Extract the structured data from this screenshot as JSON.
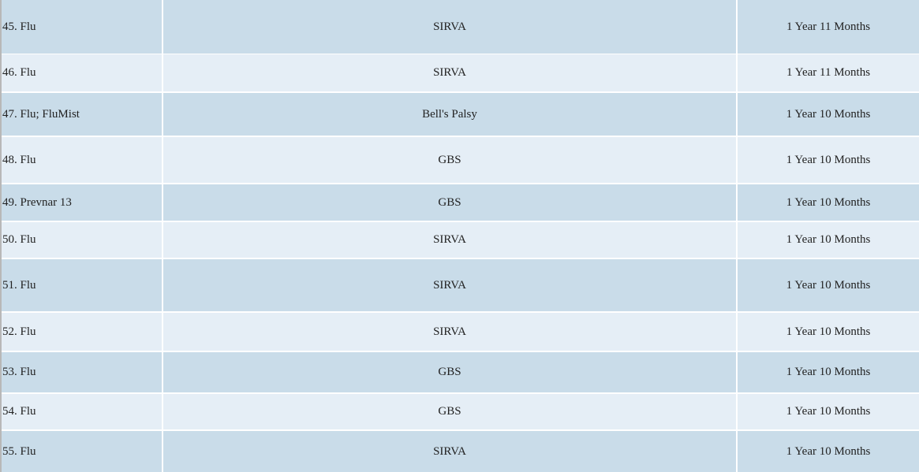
{
  "table": {
    "rows": [
      [
        "45. Flu",
        "SIRVA",
        "1 Year 11 Months"
      ],
      [
        "46. Flu",
        "SIRVA",
        "1 Year 11 Months"
      ],
      [
        "47. Flu; FluMist",
        "Bell's Palsy",
        "1 Year 10 Months"
      ],
      [
        "48. Flu",
        "GBS",
        "1 Year 10 Months"
      ],
      [
        "49. Prevnar 13",
        "GBS",
        "1 Year 10 Months"
      ],
      [
        "50. Flu",
        "SIRVA",
        "1 Year 10 Months"
      ],
      [
        "51. Flu",
        "SIRVA",
        "1 Year 10 Months"
      ],
      [
        "52. Flu",
        "SIRVA",
        "1 Year 10 Months"
      ],
      [
        "53. Flu",
        "GBS",
        "1 Year 10 Months"
      ],
      [
        "54. Flu",
        "GBS",
        "1 Year 10 Months"
      ],
      [
        "55. Flu",
        "SIRVA",
        "1 Year 10 Months"
      ]
    ]
  }
}
